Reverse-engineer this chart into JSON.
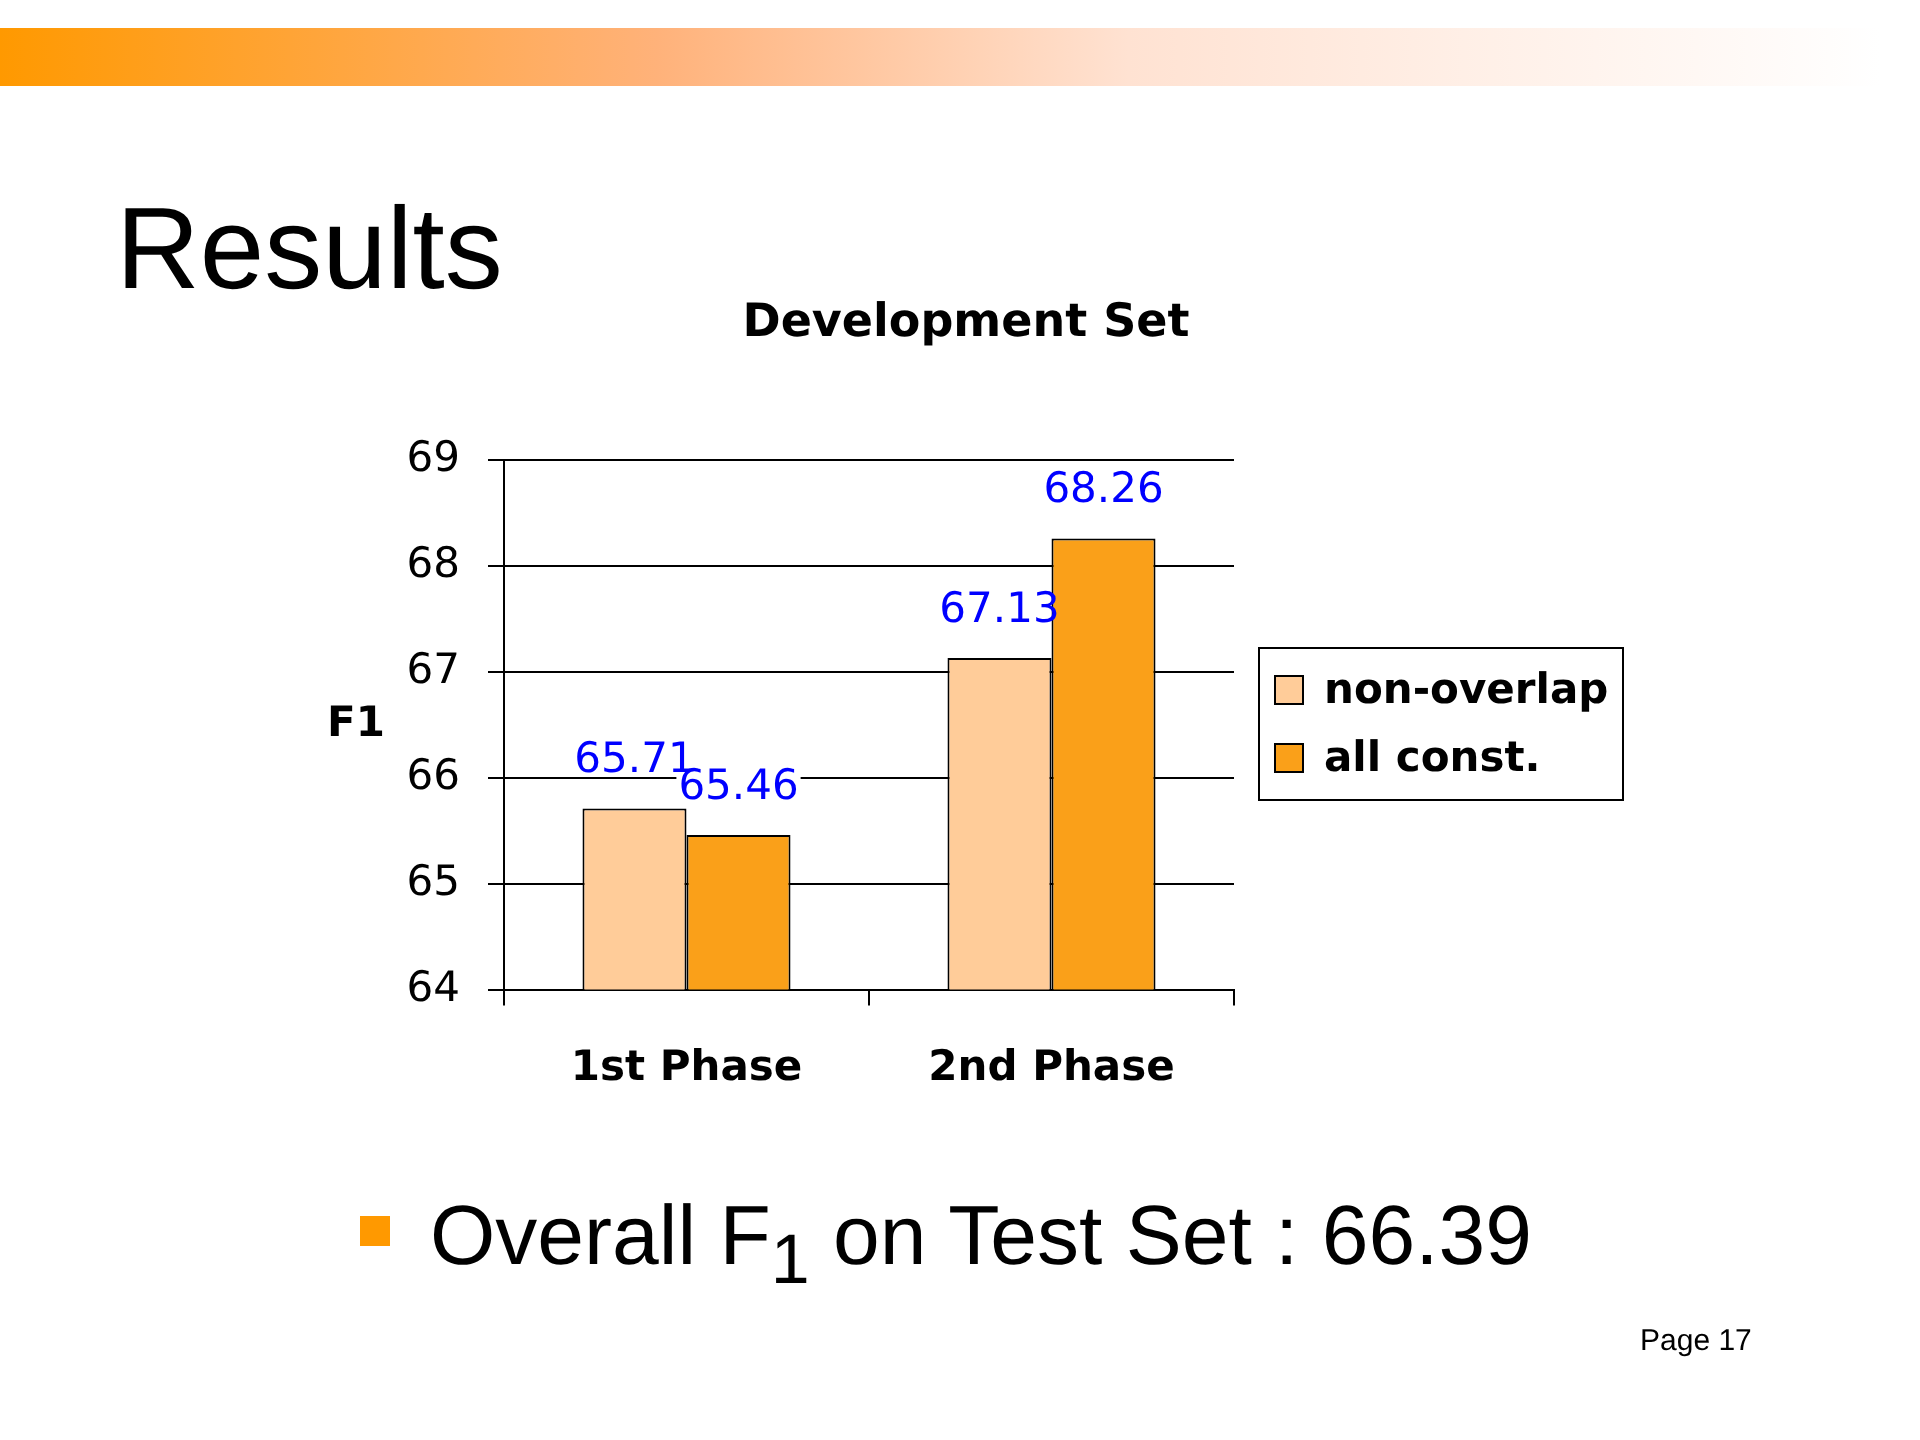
{
  "chart_data": {
    "type": "bar",
    "title": "Results",
    "subtitle": "Development Set",
    "ylabel": "F1",
    "categories": [
      "1st Phase",
      "2nd Phase"
    ],
    "series": [
      {
        "name": "non-overlap",
        "color": "#ffcc99",
        "values": [
          65.71,
          67.13
        ]
      },
      {
        "name": "all const.",
        "color": "#faa019",
        "values": [
          65.46,
          68.26
        ]
      }
    ],
    "ylim": [
      64,
      69
    ],
    "yticks": [
      64,
      65,
      66,
      67,
      68,
      69
    ],
    "grid": "y",
    "legend": "right",
    "data_labels": true,
    "annotations": [
      "Overall F$_{1}$ on Test Set : 66.39",
      "Page 17"
    ]
  }
}
